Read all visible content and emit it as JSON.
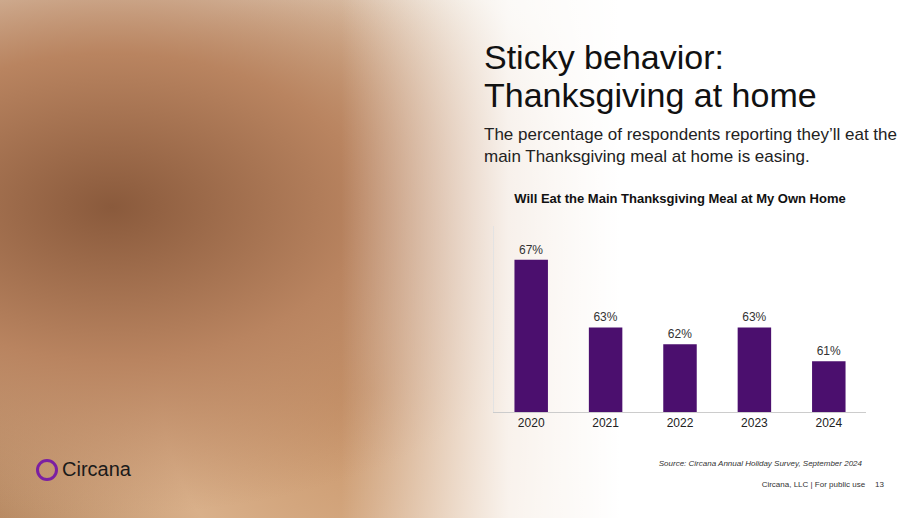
{
  "slide": {
    "title": "Sticky behavior: Thanksgiving at home",
    "subtitle": "The percentage of respondents reporting they’ll eat the main Thanksgiving meal at home is easing.",
    "source": "Source: Circana Annual Holiday Survey, September 2024",
    "footer": "Circana, LLC | For public use",
    "page_number": "13",
    "logo": "Circana"
  },
  "chart_data": {
    "type": "bar",
    "title": "Will Eat the Main Thanksgiving Meal at My Own Home",
    "categories": [
      "2020",
      "2021",
      "2022",
      "2023",
      "2024"
    ],
    "values": [
      67,
      63,
      62,
      63,
      61
    ],
    "value_labels": [
      "67%",
      "63%",
      "62%",
      "63%",
      "61%"
    ],
    "color": "#4b0f6e",
    "ylim": [
      58,
      69
    ],
    "yticks": [],
    "grid": false,
    "data_labels": true,
    "tick_labels": "x"
  }
}
